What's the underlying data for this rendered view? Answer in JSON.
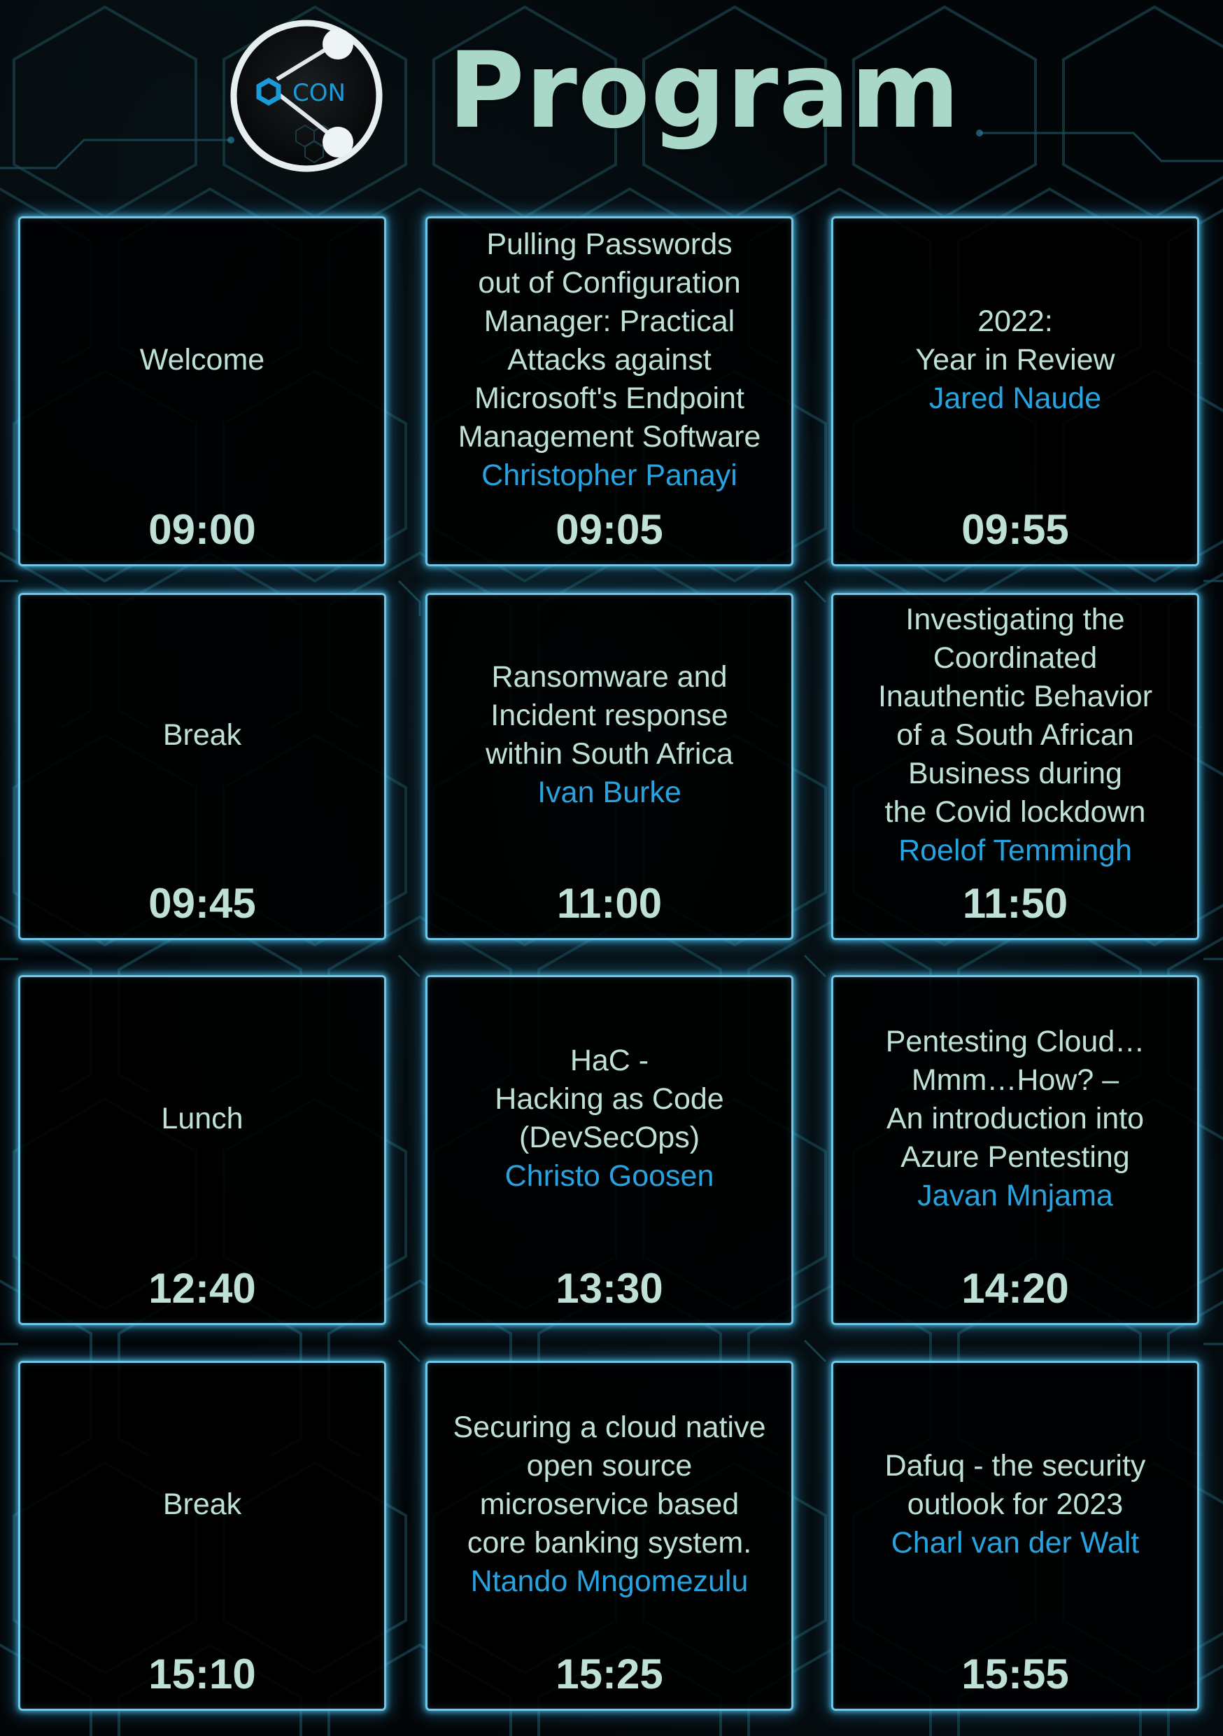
{
  "header": {
    "logo_text": "CON",
    "title": "Program"
  },
  "colors": {
    "title": "#a9d8c9",
    "card_border": "#6ec7e6",
    "speaker": "#27a3e0",
    "background": "#030608"
  },
  "sessions": [
    {
      "title": "Welcome",
      "speaker": "",
      "time": "09:00"
    },
    {
      "title": "Pulling Passwords\nout of Configuration\nManager: Practical\nAttacks against\nMicrosoft's Endpoint\nManagement Software",
      "speaker": "Christopher Panayi",
      "time": "09:05"
    },
    {
      "title": "2022:\nYear in Review",
      "speaker": "Jared Naude",
      "time": "09:55"
    },
    {
      "title": "Break",
      "speaker": "",
      "time": "09:45"
    },
    {
      "title": "Ransomware and\nIncident response\nwithin South Africa",
      "speaker": "Ivan Burke",
      "time": "11:00"
    },
    {
      "title": "Investigating the\nCoordinated\nInauthentic Behavior\nof a South African\nBusiness during\nthe Covid lockdown",
      "speaker": "Roelof Temmingh",
      "time": "11:50"
    },
    {
      "title": "Lunch",
      "speaker": "",
      "time": "12:40"
    },
    {
      "title": "HaC -\nHacking as Code\n(DevSecOps)",
      "speaker": "Christo Goosen",
      "time": "13:30"
    },
    {
      "title": "Pentesting Cloud…\nMmm…How? –\nAn introduction into\nAzure Pentesting",
      "speaker": "Javan Mnjama",
      "time": "14:20"
    },
    {
      "title": "Break",
      "speaker": "",
      "time": "15:10"
    },
    {
      "title": "Securing a cloud native\nopen source\nmicroservice based\ncore banking system.",
      "speaker": "Ntando Mngomezulu",
      "time": "15:25"
    },
    {
      "title": "Dafuq - the security\noutlook for 2023",
      "speaker": "Charl van der Walt",
      "time": "15:55"
    }
  ]
}
